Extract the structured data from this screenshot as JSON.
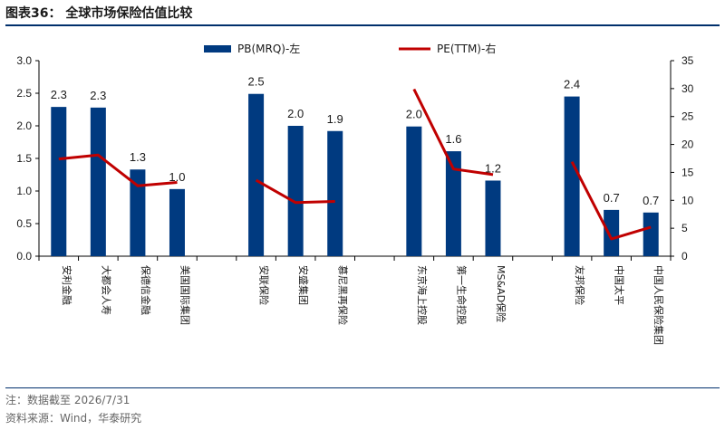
{
  "header": {
    "title": "图表36：  全球市场保险估值比较"
  },
  "footer": {
    "note": "注：数据截至 2026/7/31",
    "source": "资料来源：Wind，华泰研究"
  },
  "colors": {
    "bar": "#003a80",
    "line": "#c00000",
    "axis": "#000000"
  },
  "chart_data": {
    "type": "bar",
    "title": "",
    "categories": [
      "安利金融",
      "大都会人寿",
      "保德信金融",
      "美国国际集团",
      "安联保险",
      "安盛集团",
      "慕尼黑再保险",
      "东京海上控股",
      "第一生命控股",
      "MS&AD保险",
      "友邦保险",
      "中国太平",
      "中国人民保险集团"
    ],
    "groups": [
      [
        0,
        1,
        2,
        3
      ],
      [
        4,
        5,
        6
      ],
      [
        7,
        8,
        9
      ],
      [
        10,
        11,
        12
      ]
    ],
    "series": [
      {
        "name": "PB(MRQ)-左",
        "type": "bar",
        "axis": "left",
        "values": [
          2.3,
          2.3,
          1.3,
          1.0,
          2.5,
          2.0,
          1.9,
          2.0,
          1.6,
          1.2,
          2.4,
          0.7,
          0.7
        ],
        "actual": [
          2.29,
          2.28,
          1.33,
          1.03,
          2.49,
          2.0,
          1.92,
          1.99,
          1.61,
          1.16,
          2.45,
          0.71,
          0.67
        ],
        "labels": [
          "2.3",
          "2.3",
          "1.3",
          "1.0",
          "2.5",
          "2.0",
          "1.9",
          "2.0",
          "1.6",
          "1.2",
          "2.4",
          "0.7",
          "0.7"
        ]
      },
      {
        "name": "PE(TTM)-右",
        "type": "line",
        "axis": "right",
        "values": [
          17.4,
          18.1,
          12.6,
          13.2,
          13.6,
          9.6,
          9.8,
          29.9,
          15.6,
          14.6,
          16.9,
          3.1,
          5.2
        ]
      }
    ],
    "y_left": {
      "min": 0,
      "max": 3.0,
      "ticks": [
        "0.0",
        "0.5",
        "1.0",
        "1.5",
        "2.0",
        "2.5",
        "3.0"
      ]
    },
    "y_right": {
      "min": 0,
      "max": 35,
      "ticks": [
        "0",
        "5",
        "10",
        "15",
        "20",
        "25",
        "30",
        "35"
      ]
    },
    "legend_position": "top",
    "grid": false
  }
}
